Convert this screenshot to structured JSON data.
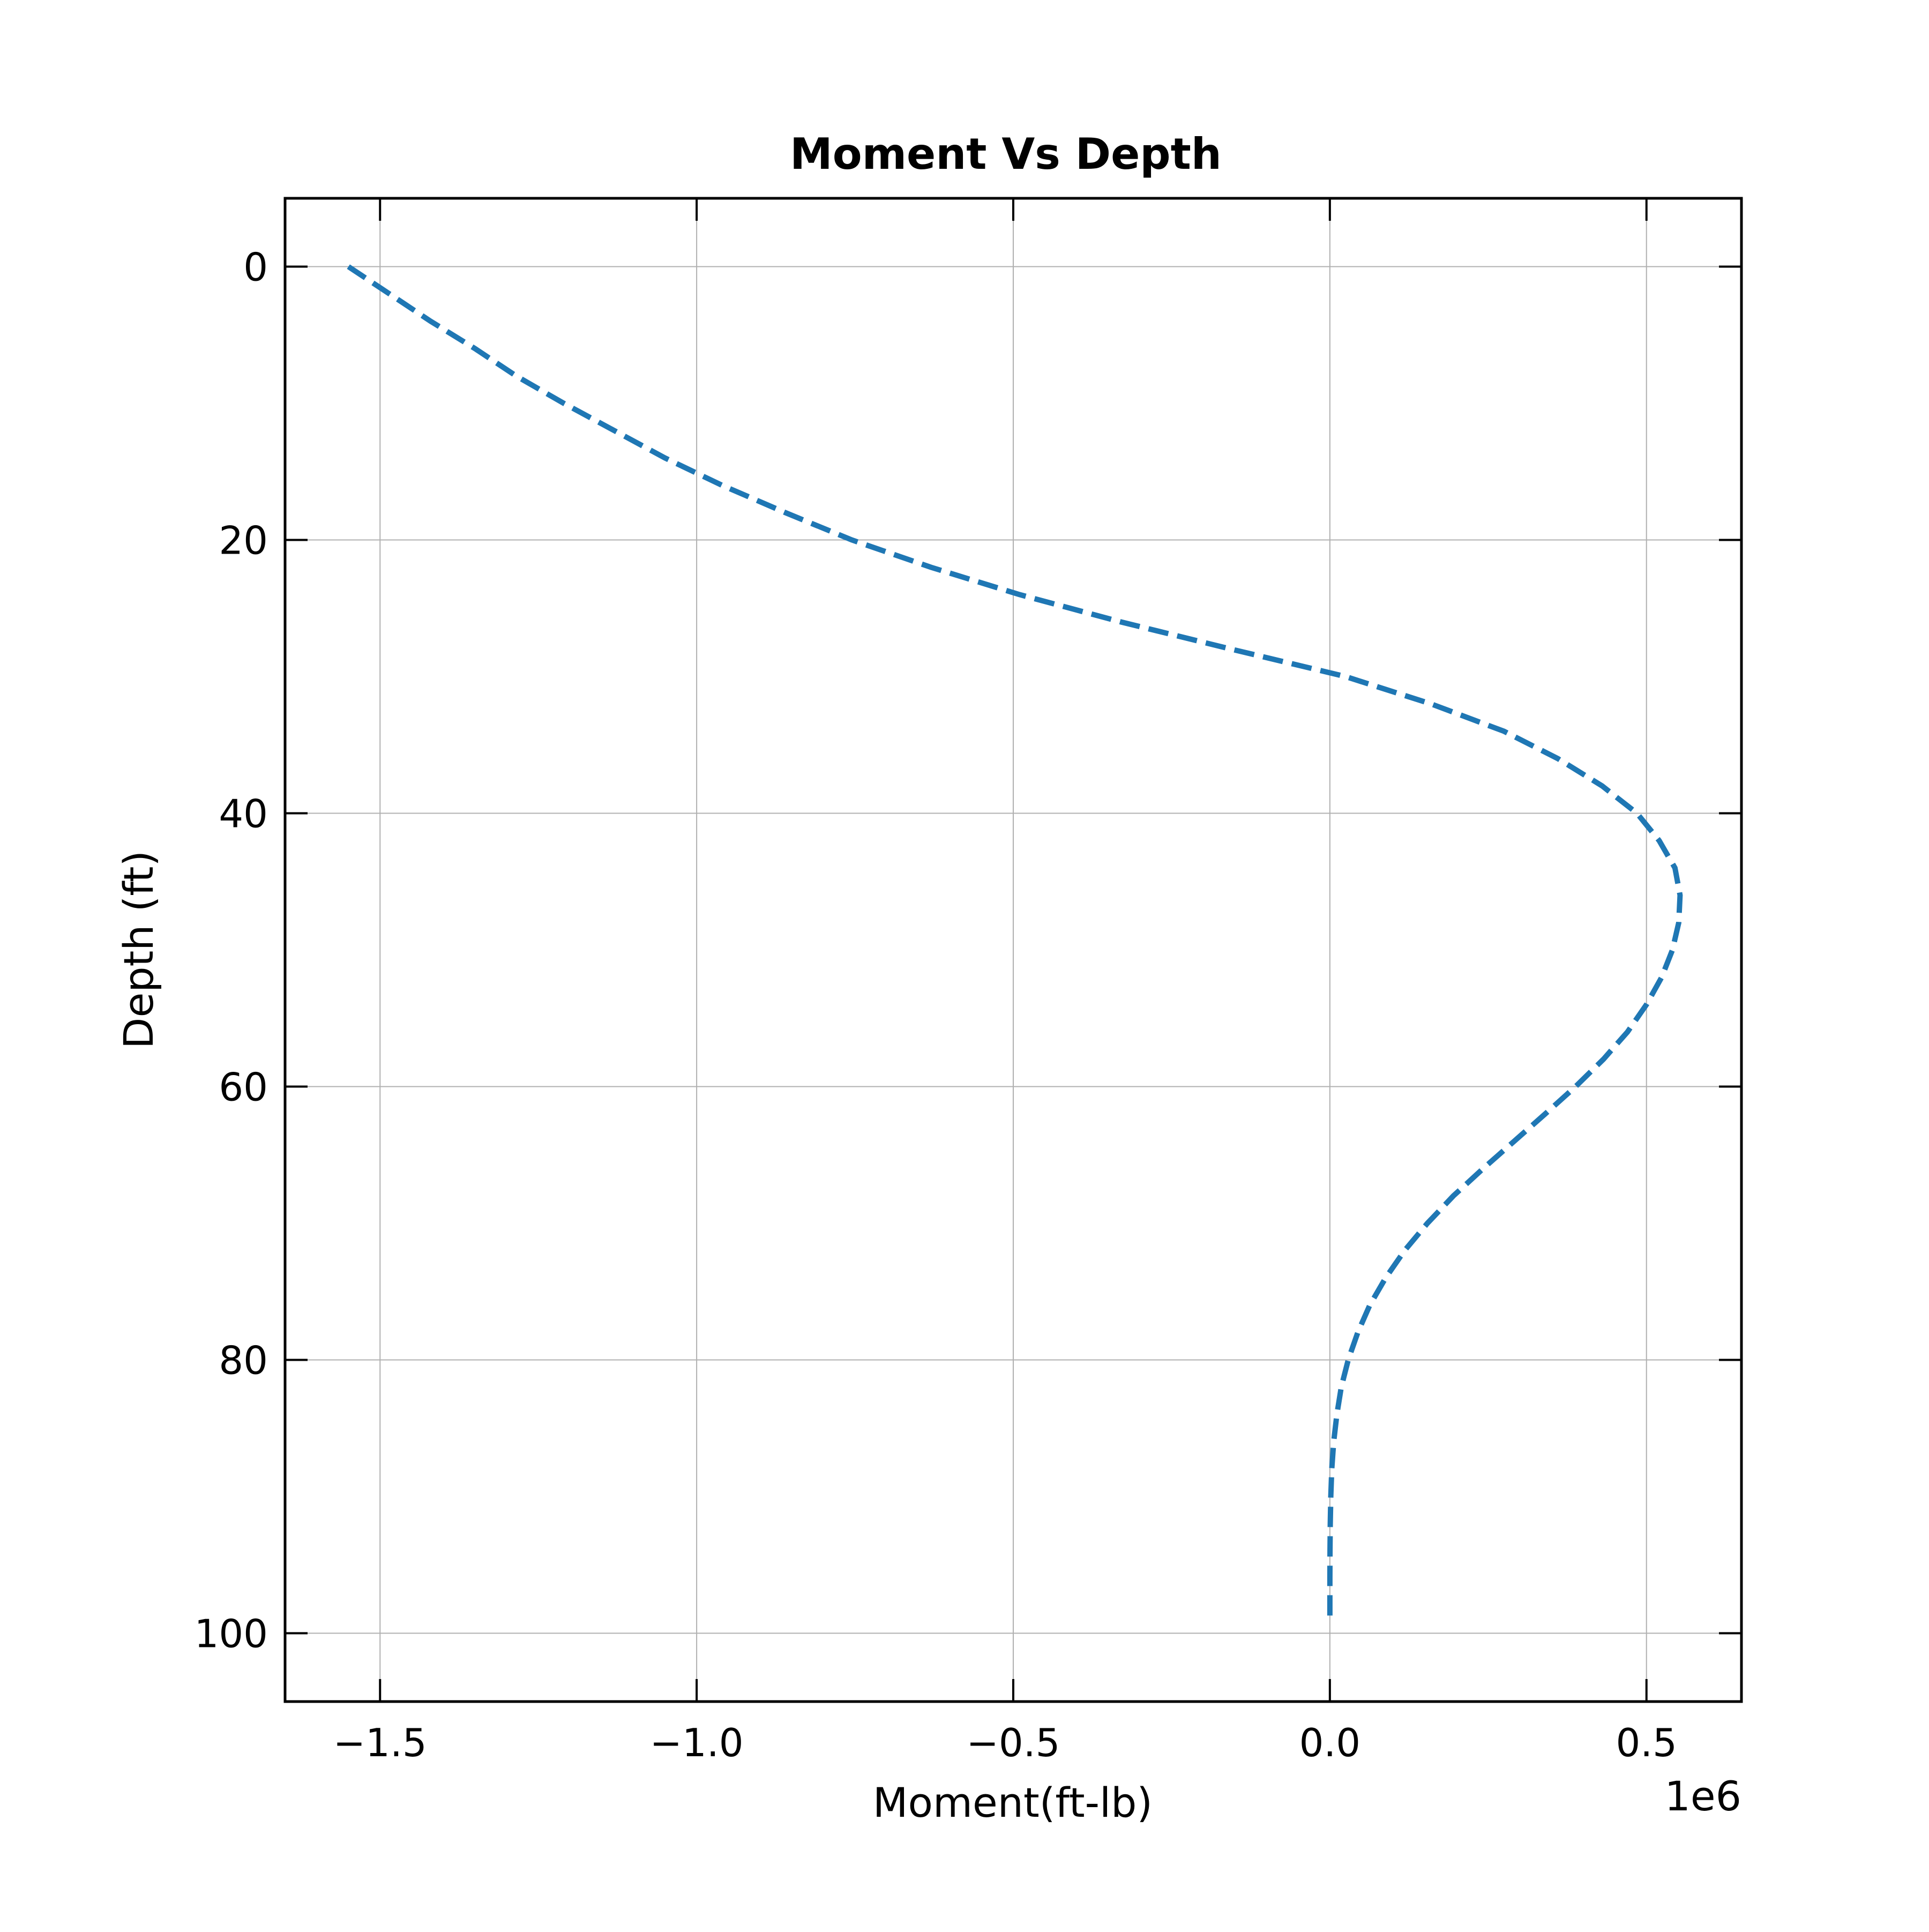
{
  "chart_data": {
    "type": "line",
    "title": "Moment Vs Depth",
    "xlabel": "Moment(ft-lb)",
    "ylabel": "Depth (ft)",
    "x_offset_label": "1e6",
    "x_scale": 1000000,
    "xlim": [
      -1650000,
      650000
    ],
    "ylim": [
      105,
      -5
    ],
    "y_inverted": true,
    "grid": true,
    "x_ticks": [
      -1500000,
      -1000000,
      -500000,
      0,
      500000
    ],
    "x_tick_labels": [
      "−1.5",
      "−1.0",
      "−0.5",
      "0.0",
      "0.5"
    ],
    "y_ticks": [
      0,
      20,
      40,
      60,
      80,
      100
    ],
    "y_tick_labels": [
      "0",
      "20",
      "40",
      "60",
      "80",
      "100"
    ],
    "series": [
      {
        "line_style": "dashed",
        "color": "#1f77b4",
        "points": [
          {
            "depth": 0,
            "moment": -1550000
          },
          {
            "depth": 2,
            "moment": -1485000
          },
          {
            "depth": 4,
            "moment": -1420000
          },
          {
            "depth": 6,
            "moment": -1350000
          },
          {
            "depth": 8,
            "moment": -1285000
          },
          {
            "depth": 10,
            "moment": -1210000
          },
          {
            "depth": 12,
            "moment": -1130000
          },
          {
            "depth": 14,
            "moment": -1050000
          },
          {
            "depth": 16,
            "moment": -960000
          },
          {
            "depth": 18,
            "moment": -860000
          },
          {
            "depth": 20,
            "moment": -755000
          },
          {
            "depth": 22,
            "moment": -630000
          },
          {
            "depth": 24,
            "moment": -490000
          },
          {
            "depth": 26,
            "moment": -330000
          },
          {
            "depth": 28,
            "moment": -155000
          },
          {
            "depth": 30,
            "moment": 25000
          },
          {
            "depth": 32,
            "moment": 160000
          },
          {
            "depth": 34,
            "moment": 275000
          },
          {
            "depth": 36,
            "moment": 360000
          },
          {
            "depth": 38,
            "moment": 430000
          },
          {
            "depth": 40,
            "moment": 485000
          },
          {
            "depth": 42,
            "moment": 520000
          },
          {
            "depth": 44,
            "moment": 545000
          },
          {
            "depth": 46,
            "moment": 553000
          },
          {
            "depth": 48,
            "moment": 551000
          },
          {
            "depth": 50,
            "moment": 541000
          },
          {
            "depth": 52,
            "moment": 524000
          },
          {
            "depth": 54,
            "moment": 500000
          },
          {
            "depth": 56,
            "moment": 470000
          },
          {
            "depth": 58,
            "moment": 432000
          },
          {
            "depth": 60,
            "moment": 388000
          },
          {
            "depth": 62,
            "moment": 340000
          },
          {
            "depth": 64,
            "moment": 291000
          },
          {
            "depth": 66,
            "moment": 242000
          },
          {
            "depth": 68,
            "moment": 195000
          },
          {
            "depth": 70,
            "moment": 154000
          },
          {
            "depth": 72,
            "moment": 118000
          },
          {
            "depth": 74,
            "moment": 88000
          },
          {
            "depth": 76,
            "moment": 63000
          },
          {
            "depth": 78,
            "moment": 44000
          },
          {
            "depth": 80,
            "moment": 29000
          },
          {
            "depth": 82,
            "moment": 18000
          },
          {
            "depth": 84,
            "moment": 11000
          },
          {
            "depth": 86,
            "moment": 6000
          },
          {
            "depth": 88,
            "moment": 3000
          },
          {
            "depth": 90,
            "moment": 1500
          },
          {
            "depth": 92,
            "moment": 600
          },
          {
            "depth": 94,
            "moment": 200
          },
          {
            "depth": 96,
            "moment": 50
          },
          {
            "depth": 98,
            "moment": 0
          },
          {
            "depth": 99,
            "moment": 0
          }
        ]
      }
    ]
  }
}
